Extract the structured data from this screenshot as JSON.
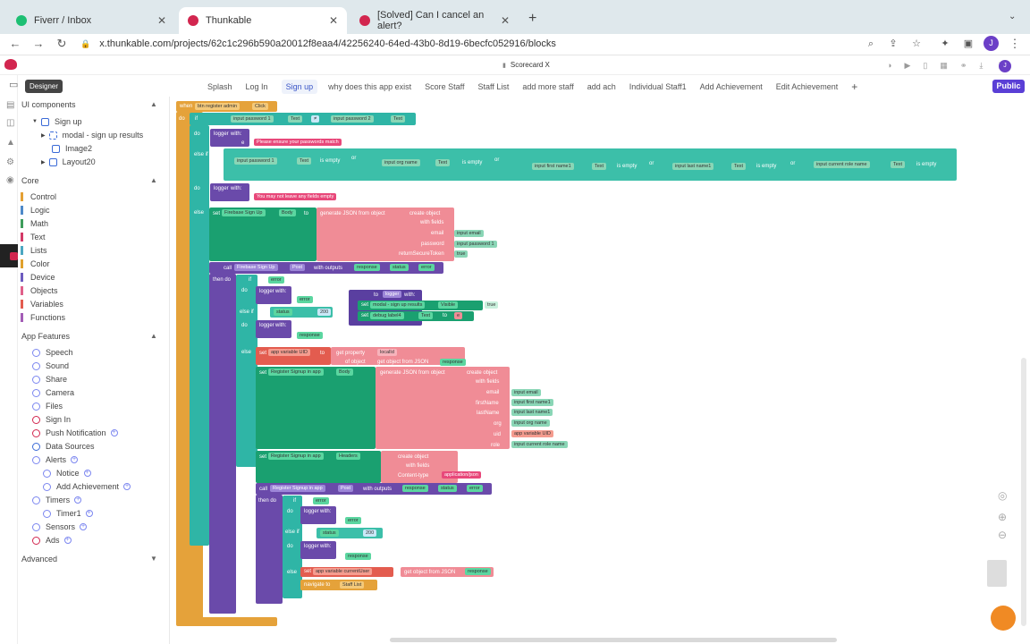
{
  "browser": {
    "tabs": [
      {
        "title": "Fiverr / Inbox"
      },
      {
        "title": "Thunkable"
      },
      {
        "title": "[Solved] Can I cancel an alert?"
      }
    ],
    "url": "x.thunkable.com/projects/62c1c296b590a20012f8eaa4/42256240-64ed-43b0-8d19-6becfc052916/blocks",
    "profile_initial": "J"
  },
  "app": {
    "project_name": "Scorecard X",
    "tooltip": "Designer",
    "publish_label": "Public",
    "screens": [
      "Splash",
      "Log In",
      "Sign up",
      "why does this app exist",
      "Score Staff",
      "Staff List",
      "add more staff",
      "add ach",
      "Individual Staff1",
      "Add Achievement",
      "Edit Achievement"
    ],
    "selected_screen": "Sign up"
  },
  "sidebar": {
    "ui_components_label": "UI components",
    "tree": [
      "Sign up",
      "modal - sign up results",
      "Image2",
      "Layout20"
    ],
    "core_label": "Core",
    "core": [
      {
        "label": "Control",
        "color": "#e4a034"
      },
      {
        "label": "Logic",
        "color": "#4e89c9"
      },
      {
        "label": "Math",
        "color": "#3e9d5b"
      },
      {
        "label": "Text",
        "color": "#d33a67"
      },
      {
        "label": "Lists",
        "color": "#4ba7c1"
      },
      {
        "label": "Color",
        "color": "#e0a02c"
      },
      {
        "label": "Device",
        "color": "#6d5bbf"
      },
      {
        "label": "Objects",
        "color": "#e0608a"
      },
      {
        "label": "Variables",
        "color": "#e35c4f"
      },
      {
        "label": "Functions",
        "color": "#a35cb6"
      }
    ],
    "app_features_label": "App Features",
    "features": [
      {
        "label": "Speech",
        "plus": false,
        "indent": 0
      },
      {
        "label": "Sound",
        "plus": false,
        "indent": 0
      },
      {
        "label": "Share",
        "plus": false,
        "indent": 0
      },
      {
        "label": "Camera",
        "plus": false,
        "indent": 0
      },
      {
        "label": "Files",
        "plus": false,
        "indent": 0
      },
      {
        "label": "Sign In",
        "plus": false,
        "indent": 0
      },
      {
        "label": "Push Notification",
        "plus": true,
        "indent": 0
      },
      {
        "label": "Data Sources",
        "plus": false,
        "indent": 0
      },
      {
        "label": "Alerts",
        "plus": true,
        "indent": 0
      },
      {
        "label": "Notice",
        "plus": true,
        "indent": 1
      },
      {
        "label": "Add Achievement",
        "plus": true,
        "indent": 1
      },
      {
        "label": "Timers",
        "plus": true,
        "indent": 0
      },
      {
        "label": "Timer1",
        "plus": true,
        "indent": 1
      },
      {
        "label": "Sensors",
        "plus": true,
        "indent": 0
      },
      {
        "label": "Ads",
        "plus": true,
        "indent": 0
      }
    ],
    "advanced_label": "Advanced"
  },
  "blocks": {
    "event": "when",
    "event_target": "btn register admin",
    "event_name": "Click",
    "do": "do",
    "if": "if",
    "else_if": "else if",
    "else": "else",
    "then_do": "then do",
    "input_password_1": "input password 1",
    "input_password_2": "input password 2",
    "text_prop": "Text",
    "eq": "≠",
    "logger": "logger",
    "with": "with:",
    "msg_match": "Please ensure your passwords match",
    "is_empty": "is empty",
    "or": "or",
    "input_org_name": "input org name",
    "input_first_name": "input first name1",
    "input_last_name": "input last name1",
    "input_role": "input current role name",
    "msg_empty": "You may not leave any fields empty",
    "set": "set",
    "to": "to",
    "firebase_signup": "Firebase Sign Up",
    "body": "Body",
    "gen_json": "generate JSON from object",
    "create_object": "create object",
    "with_fields": "with fields",
    "email": "email",
    "input_email": "input email",
    "password": "password",
    "return_token": "returnSecureToken",
    "true_val": "true",
    "call": "call",
    "post": "Post",
    "with_outputs": "with outputs",
    "response": "response",
    "status": "status",
    "error": "error",
    "e": "e",
    "modal_results": "modal - sign up results",
    "visible": "Visible",
    "debug_label": "debug label4",
    "status_200": "200",
    "app_var_uid": "app variable UID",
    "get_property": "get property",
    "localid": "localId",
    "of_object": "of object",
    "get_obj_json": "get object from JSON",
    "register_signup": "Register Signup in app",
    "first_name": "firstName",
    "last_name": "lastName",
    "org": "org",
    "uid": "uid",
    "role": "role",
    "headers": "Headers",
    "content_type": "Content-type",
    "app_json": "application/json",
    "current_user": "app variable currentUser",
    "navigate_to": "navigate to",
    "staff_list": "Staff List"
  }
}
